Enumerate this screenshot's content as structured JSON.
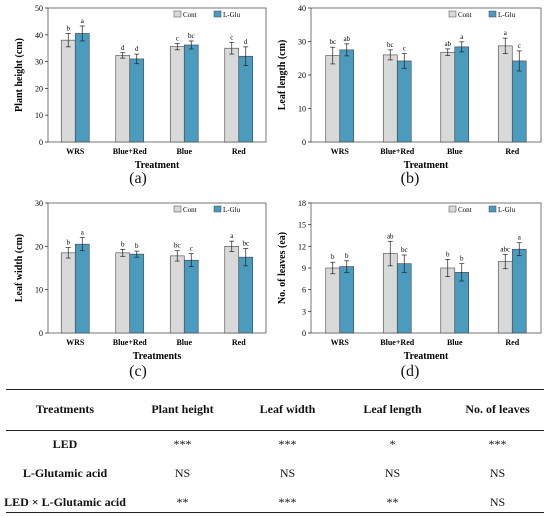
{
  "legend": [
    "Cont",
    "L-Glu"
  ],
  "colors": {
    "cont": "#d9d9d9",
    "lglu": "#4a9bbd",
    "axis": "#333333"
  },
  "chart_data": [
    {
      "type": "bar",
      "panel_label": "(a)",
      "categories": [
        "WRS",
        "Blue+Red",
        "Blue",
        "Red"
      ],
      "series": [
        {
          "name": "Cont",
          "values": [
            38.0,
            32.3,
            35.6,
            35.0
          ],
          "errors": [
            2.5,
            1.0,
            1.2,
            2.2
          ],
          "letters": [
            "b",
            "d",
            "c",
            "c"
          ]
        },
        {
          "name": "L-Glu",
          "values": [
            40.5,
            31.0,
            36.2,
            32.0
          ],
          "errors": [
            2.8,
            1.8,
            1.5,
            3.5
          ],
          "letters": [
            "a",
            "d",
            "bc",
            "d"
          ]
        }
      ],
      "xlabel": "Treatment",
      "ylabel": "Plant height (cm)",
      "ylim": [
        0,
        50
      ],
      "yticks": [
        0,
        10,
        20,
        30,
        40,
        50
      ],
      "legend_position": "top-right"
    },
    {
      "type": "bar",
      "panel_label": "(b)",
      "categories": [
        "WRS",
        "Blue+Red",
        "Blue",
        "Red"
      ],
      "series": [
        {
          "name": "Cont",
          "values": [
            25.8,
            26.0,
            26.8,
            28.7
          ],
          "errors": [
            2.5,
            1.5,
            1.0,
            2.3
          ],
          "letters": [
            "bc",
            "bc",
            "ab",
            "a"
          ]
        },
        {
          "name": "L-Glu",
          "values": [
            27.5,
            24.2,
            28.4,
            24.2
          ],
          "errors": [
            1.8,
            2.2,
            1.5,
            3.0
          ],
          "letters": [
            "ab",
            "c",
            "a",
            "c"
          ]
        }
      ],
      "xlabel": "Treatment",
      "ylabel": "Leaf length (cm)",
      "ylim": [
        0,
        40
      ],
      "yticks": [
        0,
        10,
        20,
        30,
        40
      ],
      "legend_position": "top-right"
    },
    {
      "type": "bar",
      "panel_label": "(c)",
      "categories": [
        "WRS",
        "Blue+Red",
        "Blue",
        "Red"
      ],
      "series": [
        {
          "name": "Cont",
          "values": [
            18.5,
            18.5,
            17.8,
            20.0
          ],
          "errors": [
            1.2,
            0.8,
            1.2,
            1.2
          ],
          "letters": [
            "b",
            "b",
            "bc",
            "a"
          ]
        },
        {
          "name": "L-Glu",
          "values": [
            20.5,
            18.2,
            16.8,
            17.5
          ],
          "errors": [
            1.5,
            0.7,
            1.5,
            2.0
          ],
          "letters": [
            "a",
            "b",
            "c",
            "bc"
          ]
        }
      ],
      "xlabel": "Treatments",
      "ylabel": "Leaf width (cm)",
      "ylim": [
        0,
        30
      ],
      "yticks": [
        0,
        10,
        20,
        30
      ],
      "legend_position": "top-right"
    },
    {
      "type": "bar",
      "panel_label": "(d)",
      "categories": [
        "WRS",
        "Blue+Red",
        "Blue",
        "Red"
      ],
      "series": [
        {
          "name": "Cont",
          "values": [
            9.0,
            11.0,
            9.0,
            9.9
          ],
          "errors": [
            0.8,
            1.7,
            1.2,
            1.0
          ],
          "letters": [
            "b",
            "ab",
            "b",
            "abc"
          ]
        },
        {
          "name": "L-Glu",
          "values": [
            9.2,
            9.6,
            8.4,
            11.6
          ],
          "errors": [
            0.8,
            1.2,
            1.2,
            0.9
          ],
          "letters": [
            "b",
            "bc",
            "b",
            "a"
          ]
        }
      ],
      "xlabel": "Treatment",
      "ylabel": "No. of leaves (ea)",
      "ylim": [
        0,
        18
      ],
      "yticks": [
        0,
        3,
        6,
        9,
        12,
        15,
        18
      ],
      "legend_position": "top-right"
    }
  ],
  "table": {
    "headers": [
      "Treatments",
      "Plant height",
      "Leaf width",
      "Leaf length",
      "No. of leaves"
    ],
    "rows": [
      [
        "LED",
        "***",
        "***",
        "*",
        "***"
      ],
      [
        "L-Glutamic acid",
        "NS",
        "NS",
        "NS",
        "NS"
      ],
      [
        "LED × L-Glutamic acid",
        "**",
        "***",
        "**",
        "NS"
      ]
    ]
  }
}
